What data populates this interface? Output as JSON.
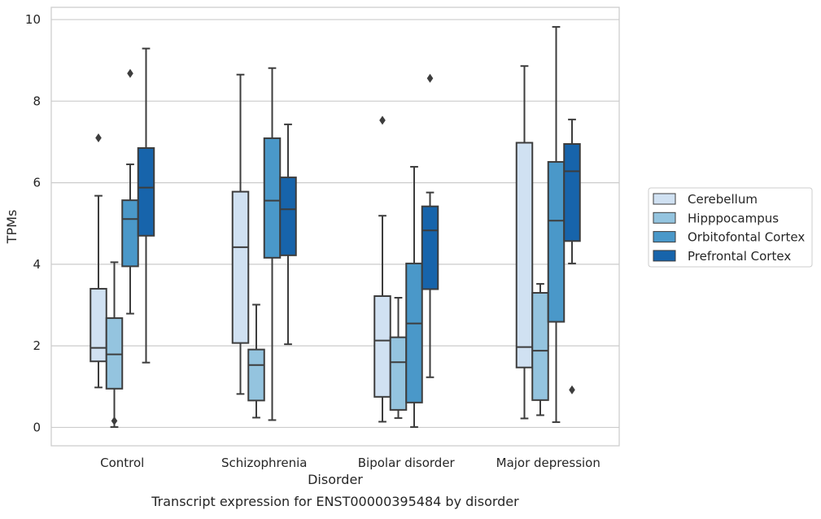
{
  "caption": "Transcript expression for ENST00000395484 by disorder",
  "chart_data": {
    "type": "box",
    "title": "",
    "xlabel": "Disorder",
    "ylabel": "TPMs",
    "ylim": [
      -0.45,
      10.3
    ],
    "yticks": [
      0,
      2,
      4,
      6,
      8,
      10
    ],
    "grid": true,
    "legend_position": "right",
    "categories": [
      "Control",
      "Schizophrenia",
      "Bipolar disorder",
      "Major depression"
    ],
    "series": [
      {
        "name": "Cerebellum",
        "color": "#d0e1f2",
        "boxes": [
          {
            "whislo": 0.98,
            "q1": 1.62,
            "med": 1.95,
            "q3": 3.4,
            "whishi": 5.68,
            "fliers": [
              7.1
            ]
          },
          {
            "whislo": 0.82,
            "q1": 2.07,
            "med": 4.42,
            "q3": 5.78,
            "whishi": 8.65,
            "fliers": []
          },
          {
            "whislo": 0.14,
            "q1": 0.75,
            "med": 2.13,
            "q3": 3.22,
            "whishi": 5.19,
            "fliers": [
              7.53
            ]
          },
          {
            "whislo": 0.22,
            "q1": 1.47,
            "med": 1.97,
            "q3": 6.98,
            "whishi": 8.86,
            "fliers": []
          }
        ]
      },
      {
        "name": "Hipppocampus",
        "color": "#94c4df",
        "boxes": [
          {
            "whislo": 0.01,
            "q1": 0.95,
            "med": 1.79,
            "q3": 2.68,
            "whishi": 4.05,
            "fliers": [
              0.16
            ]
          },
          {
            "whislo": 0.24,
            "q1": 0.66,
            "med": 1.53,
            "q3": 1.91,
            "whishi": 3.01,
            "fliers": []
          },
          {
            "whislo": 0.23,
            "q1": 0.43,
            "med": 1.6,
            "q3": 2.21,
            "whishi": 3.18,
            "fliers": []
          },
          {
            "whislo": 0.3,
            "q1": 0.67,
            "med": 1.88,
            "q3": 3.3,
            "whishi": 3.52,
            "fliers": []
          }
        ]
      },
      {
        "name": "Orbitofontal Cortex",
        "color": "#4a98c9",
        "boxes": [
          {
            "whislo": 2.79,
            "q1": 3.95,
            "med": 5.11,
            "q3": 5.57,
            "whishi": 6.45,
            "fliers": [
              8.68
            ]
          },
          {
            "whislo": 0.18,
            "q1": 4.16,
            "med": 5.56,
            "q3": 7.09,
            "whishi": 8.81,
            "fliers": []
          },
          {
            "whislo": 0.01,
            "q1": 0.61,
            "med": 2.55,
            "q3": 4.02,
            "whishi": 6.39,
            "fliers": []
          },
          {
            "whislo": 0.13,
            "q1": 2.59,
            "med": 5.07,
            "q3": 6.51,
            "whishi": 9.82,
            "fliers": []
          }
        ]
      },
      {
        "name": "Prefrontal Cortex",
        "color": "#1764ab",
        "boxes": [
          {
            "whislo": 1.59,
            "q1": 4.7,
            "med": 5.88,
            "q3": 6.85,
            "whishi": 9.29,
            "fliers": []
          },
          {
            "whislo": 2.04,
            "q1": 4.22,
            "med": 5.35,
            "q3": 6.13,
            "whishi": 7.43,
            "fliers": []
          },
          {
            "whislo": 1.23,
            "q1": 3.39,
            "med": 4.83,
            "q3": 5.42,
            "whishi": 5.76,
            "fliers": [
              8.56
            ]
          },
          {
            "whislo": 4.02,
            "q1": 4.57,
            "med": 6.28,
            "q3": 6.95,
            "whishi": 7.55,
            "fliers": [
              0.92
            ]
          }
        ]
      }
    ]
  }
}
